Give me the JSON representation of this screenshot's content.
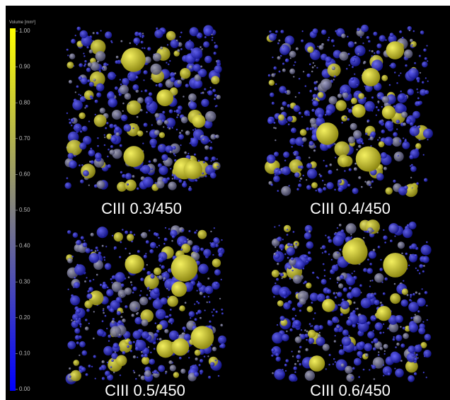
{
  "colorbar": {
    "label": "Volume [mm³]",
    "ticks": [
      "1.00",
      "0.90",
      "0.80",
      "0.70",
      "0.60",
      "0.50",
      "0.40",
      "0.30",
      "0.20",
      "0.10",
      "0.00"
    ]
  },
  "panels": [
    {
      "label": "CIII 0.3/450"
    },
    {
      "label": "CIII 0.4/450"
    },
    {
      "label": "CIII 0.5/450"
    },
    {
      "label": "CIII 0.6/450"
    }
  ]
}
